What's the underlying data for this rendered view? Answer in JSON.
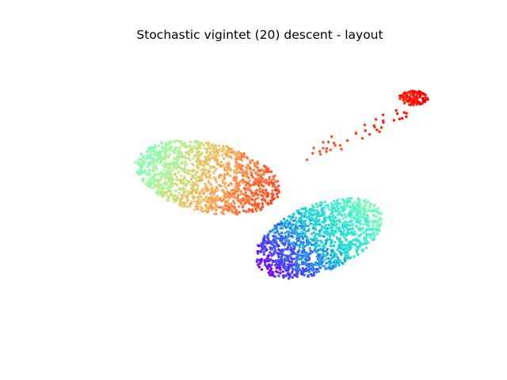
{
  "chart_data": {
    "type": "scatter",
    "title": "Stochastic vigintet (20) descent - layout",
    "axes_visible": false,
    "grid": false,
    "xlim": [
      -12,
      12
    ],
    "ylim": [
      -12,
      12
    ],
    "colormap": [
      "#7f00ff",
      "#3a5ffb",
      "#1bcfd4",
      "#40ecd4",
      "#80ffb4",
      "#b0f796",
      "#f3c26a",
      "#ff8a46",
      "#ff4b26",
      "#ff0000"
    ],
    "clusters": [
      {
        "center": [
          -3.2,
          1.2
        ],
        "spread": [
          4.6,
          2.8
        ],
        "rotation": -0.35,
        "count": 1300,
        "tone_range": [
          0.45,
          0.9
        ]
      },
      {
        "center": [
          3.6,
          -3.8
        ],
        "spread": [
          4.4,
          2.6
        ],
        "rotation": 0.62,
        "count": 1300,
        "tone_range": [
          0.0,
          0.45
        ]
      },
      {
        "center": [
          9.4,
          7.7
        ],
        "spread": [
          0.9,
          0.6
        ],
        "rotation": 0.0,
        "count": 120,
        "tone_range": [
          0.96,
          1.0
        ]
      }
    ],
    "bridge": {
      "from": [
        3.2,
        3.0
      ],
      "to": [
        9.0,
        6.6
      ],
      "count": 40,
      "tone_range": [
        0.85,
        0.98
      ]
    }
  }
}
